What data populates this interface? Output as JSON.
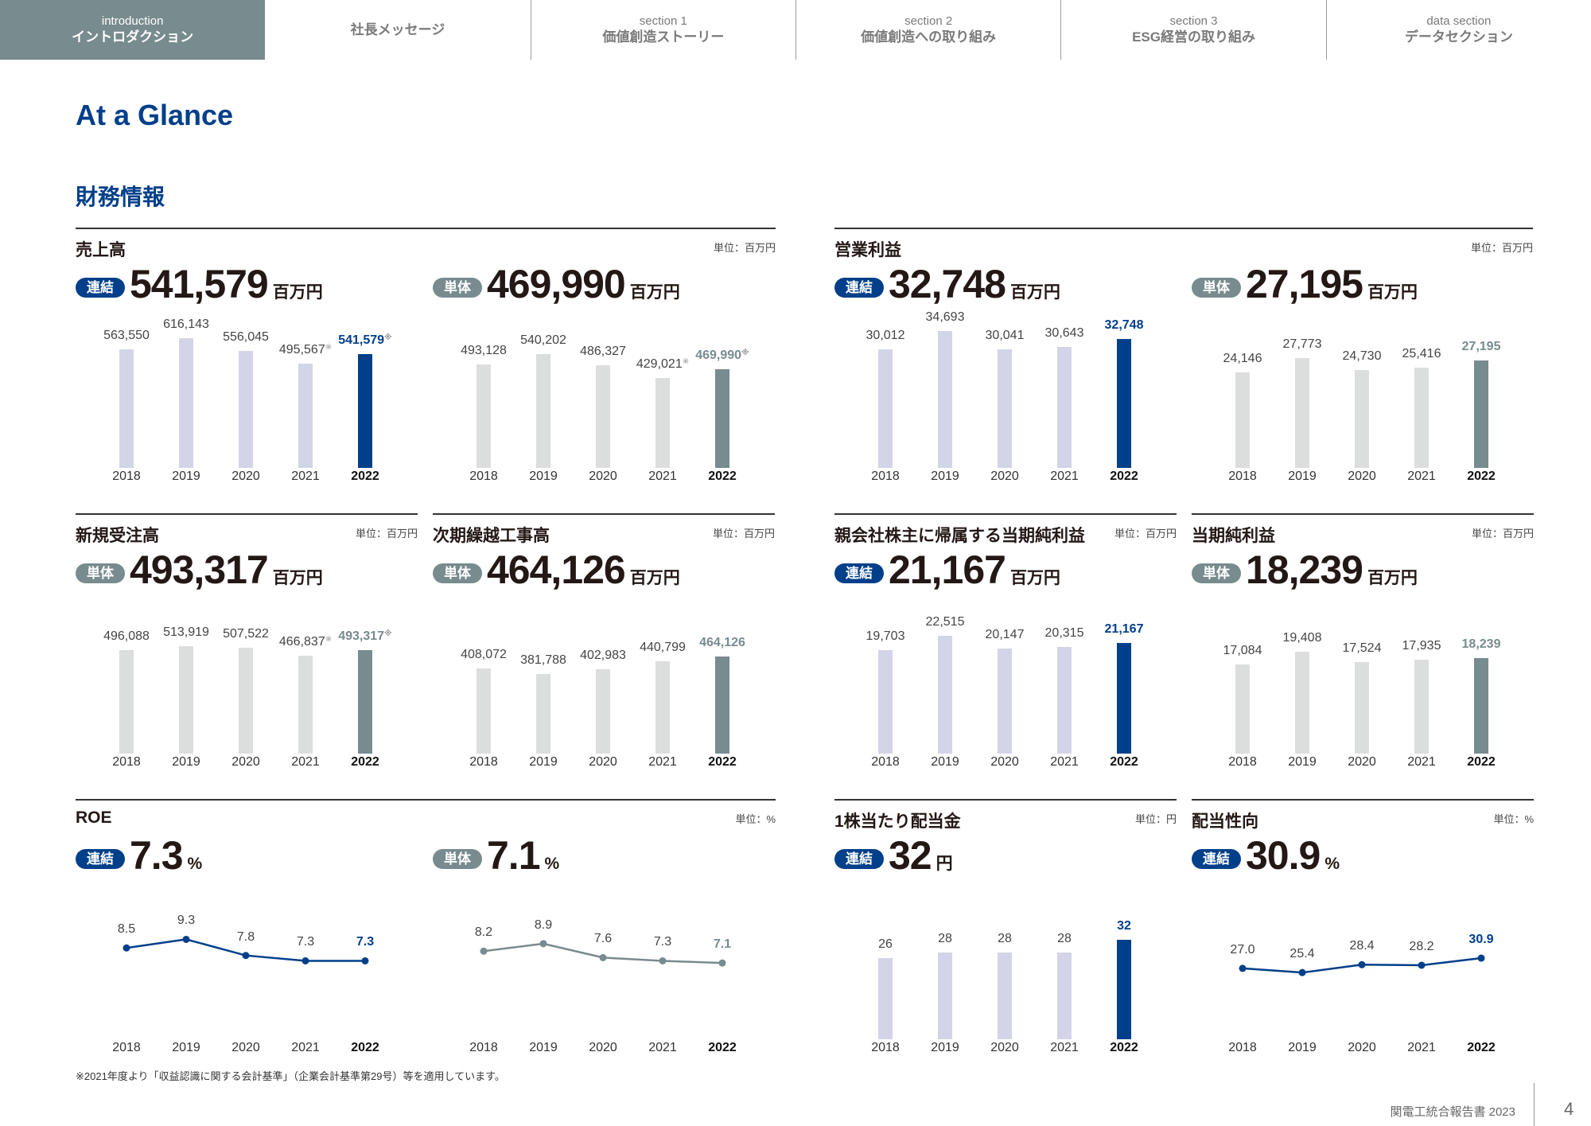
{
  "nav": {
    "tabs": [
      {
        "sub": "introduction",
        "label": "イントロダクション",
        "active": true
      },
      {
        "sub": "",
        "label": "社長メッセージ",
        "active": false
      },
      {
        "sub": "section 1",
        "label": "価値創造ストーリー",
        "active": false
      },
      {
        "sub": "section 2",
        "label": "価値創造への取り組み",
        "active": false
      },
      {
        "sub": "section 3",
        "label": "ESG経営の取り組み",
        "active": false
      },
      {
        "sub": "data section",
        "label": "データセクション",
        "active": false
      }
    ]
  },
  "page_title": "At a Glance",
  "section_title": "財務情報",
  "colors": {
    "consolidated": "#003f8a",
    "consolidated_bar": "#d3d4e8",
    "standalone": "#788b8f",
    "standalone_bar": "#dcdddd",
    "title": "#003f8a"
  },
  "groups": [
    {
      "title": "売上高",
      "unit_label": "単位：百万円",
      "charts": [
        0,
        1
      ]
    },
    {
      "title": "営業利益",
      "unit_label": "単位：百万円",
      "charts": [
        2,
        3
      ]
    },
    {
      "title": "新規受注高",
      "unit_label": "単位：百万円",
      "charts": [
        4
      ]
    },
    {
      "title": "次期繰越工事高",
      "unit_label": "単位：百万円",
      "charts": [
        5
      ]
    },
    {
      "title": "親会社株主に帰属する当期純利益",
      "unit_label": "単位：百万円",
      "charts": [
        6
      ]
    },
    {
      "title": "当期純利益",
      "unit_label": "単位：百万円",
      "charts": [
        7
      ]
    },
    {
      "title": "ROE",
      "unit_label": "単位：%",
      "charts": [
        8,
        9
      ]
    },
    {
      "title": "1株当たり配当金",
      "unit_label": "単位：円",
      "charts": [
        10
      ]
    },
    {
      "title": "配当性向",
      "unit_label": "単位：%",
      "charts": [
        11
      ]
    }
  ],
  "chart_data": [
    {
      "type": "bar",
      "title": "売上高",
      "scope": "consolidated",
      "badge": "連結",
      "headline": "541,579",
      "headline_unit": "百万円",
      "categories": [
        "2018",
        "2019",
        "2020",
        "2021",
        "2022"
      ],
      "values": [
        563550,
        616143,
        556045,
        495567,
        541579
      ],
      "labels": [
        "563,550",
        "616,143",
        "556,045",
        "495,567",
        "541,579"
      ],
      "notes": [
        false,
        false,
        false,
        true,
        true
      ],
      "note_mark": "※"
    },
    {
      "type": "bar",
      "title": "売上高",
      "scope": "standalone",
      "badge": "単体",
      "headline": "469,990",
      "headline_unit": "百万円",
      "categories": [
        "2018",
        "2019",
        "2020",
        "2021",
        "2022"
      ],
      "values": [
        493128,
        540202,
        486327,
        429021,
        469990
      ],
      "labels": [
        "493,128",
        "540,202",
        "486,327",
        "429,021",
        "469,990"
      ],
      "notes": [
        false,
        false,
        false,
        true,
        true
      ],
      "note_mark": "※"
    },
    {
      "type": "bar",
      "title": "営業利益",
      "scope": "consolidated",
      "badge": "連結",
      "headline": "32,748",
      "headline_unit": "百万円",
      "categories": [
        "2018",
        "2019",
        "2020",
        "2021",
        "2022"
      ],
      "values": [
        30012,
        34693,
        30041,
        30643,
        32748
      ],
      "labels": [
        "30,012",
        "34,693",
        "30,041",
        "30,643",
        "32,748"
      ],
      "notes": [
        false,
        false,
        false,
        false,
        false
      ],
      "note_mark": "※"
    },
    {
      "type": "bar",
      "title": "営業利益",
      "scope": "standalone",
      "badge": "単体",
      "headline": "27,195",
      "headline_unit": "百万円",
      "categories": [
        "2018",
        "2019",
        "2020",
        "2021",
        "2022"
      ],
      "values": [
        24146,
        27773,
        24730,
        25416,
        27195
      ],
      "labels": [
        "24,146",
        "27,773",
        "24,730",
        "25,416",
        "27,195"
      ],
      "notes": [
        false,
        false,
        false,
        false,
        false
      ],
      "note_mark": "※"
    },
    {
      "type": "bar",
      "title": "新規受注高",
      "scope": "standalone",
      "badge": "単体",
      "headline": "493,317",
      "headline_unit": "百万円",
      "categories": [
        "2018",
        "2019",
        "2020",
        "2021",
        "2022"
      ],
      "values": [
        496088,
        513919,
        507522,
        466837,
        493317
      ],
      "labels": [
        "496,088",
        "513,919",
        "507,522",
        "466,837",
        "493,317"
      ],
      "notes": [
        false,
        false,
        false,
        true,
        true
      ],
      "note_mark": "※"
    },
    {
      "type": "bar",
      "title": "次期繰越工事高",
      "scope": "standalone",
      "badge": "単体",
      "headline": "464,126",
      "headline_unit": "百万円",
      "categories": [
        "2018",
        "2019",
        "2020",
        "2021",
        "2022"
      ],
      "values": [
        408072,
        381788,
        402983,
        440799,
        464126
      ],
      "labels": [
        "408,072",
        "381,788",
        "402,983",
        "440,799",
        "464,126"
      ],
      "notes": [
        false,
        false,
        false,
        false,
        false
      ],
      "note_mark": "※"
    },
    {
      "type": "bar",
      "title": "親会社株主に帰属する当期純利益",
      "scope": "consolidated",
      "badge": "連結",
      "headline": "21,167",
      "headline_unit": "百万円",
      "categories": [
        "2018",
        "2019",
        "2020",
        "2021",
        "2022"
      ],
      "values": [
        19703,
        22515,
        20147,
        20315,
        21167
      ],
      "labels": [
        "19,703",
        "22,515",
        "20,147",
        "20,315",
        "21,167"
      ],
      "notes": [
        false,
        false,
        false,
        false,
        false
      ],
      "note_mark": "※"
    },
    {
      "type": "bar",
      "title": "当期純利益",
      "scope": "standalone",
      "badge": "単体",
      "headline": "18,239",
      "headline_unit": "百万円",
      "categories": [
        "2018",
        "2019",
        "2020",
        "2021",
        "2022"
      ],
      "values": [
        17084,
        19408,
        17524,
        17935,
        18239
      ],
      "labels": [
        "17,084",
        "19,408",
        "17,524",
        "17,935",
        "18,239"
      ],
      "notes": [
        false,
        false,
        false,
        false,
        false
      ],
      "note_mark": "※"
    },
    {
      "type": "line",
      "title": "ROE",
      "scope": "consolidated",
      "badge": "連結",
      "headline": "7.3",
      "headline_unit": "%",
      "categories": [
        "2018",
        "2019",
        "2020",
        "2021",
        "2022"
      ],
      "values": [
        8.5,
        9.3,
        7.8,
        7.3,
        7.3
      ],
      "labels": [
        "8.5",
        "9.3",
        "7.8",
        "7.3",
        "7.3"
      ],
      "notes": [
        false,
        false,
        false,
        false,
        false
      ],
      "note_mark": "※"
    },
    {
      "type": "line",
      "title": "ROE",
      "scope": "standalone",
      "badge": "単体",
      "headline": "7.1",
      "headline_unit": "%",
      "categories": [
        "2018",
        "2019",
        "2020",
        "2021",
        "2022"
      ],
      "values": [
        8.2,
        8.9,
        7.6,
        7.3,
        7.1
      ],
      "labels": [
        "8.2",
        "8.9",
        "7.6",
        "7.3",
        "7.1"
      ],
      "notes": [
        false,
        false,
        false,
        false,
        false
      ],
      "note_mark": "※"
    },
    {
      "type": "bar",
      "title": "1株当たり配当金",
      "scope": "consolidated",
      "badge": "連結",
      "headline": "32",
      "headline_unit": "円",
      "categories": [
        "2018",
        "2019",
        "2020",
        "2021",
        "2022"
      ],
      "values": [
        26,
        28,
        28,
        28,
        32
      ],
      "labels": [
        "26",
        "28",
        "28",
        "28",
        "32"
      ],
      "notes": [
        false,
        false,
        false,
        false,
        false
      ],
      "note_mark": "※"
    },
    {
      "type": "line",
      "title": "配当性向",
      "scope": "consolidated",
      "badge": "連結",
      "headline": "30.9",
      "headline_unit": "%",
      "categories": [
        "2018",
        "2019",
        "2020",
        "2021",
        "2022"
      ],
      "values": [
        27.0,
        25.4,
        28.4,
        28.2,
        30.9
      ],
      "labels": [
        "27.0",
        "25.4",
        "28.4",
        "28.2",
        "30.9"
      ],
      "notes": [
        false,
        false,
        false,
        false,
        false
      ],
      "note_mark": "※"
    }
  ],
  "footnote": "※2021年度より「収益認識に関する会計基準」（企業会計基準第29号）等を適用しています。",
  "footer": {
    "report": "関電工統合報告書 2023",
    "page": "4"
  }
}
